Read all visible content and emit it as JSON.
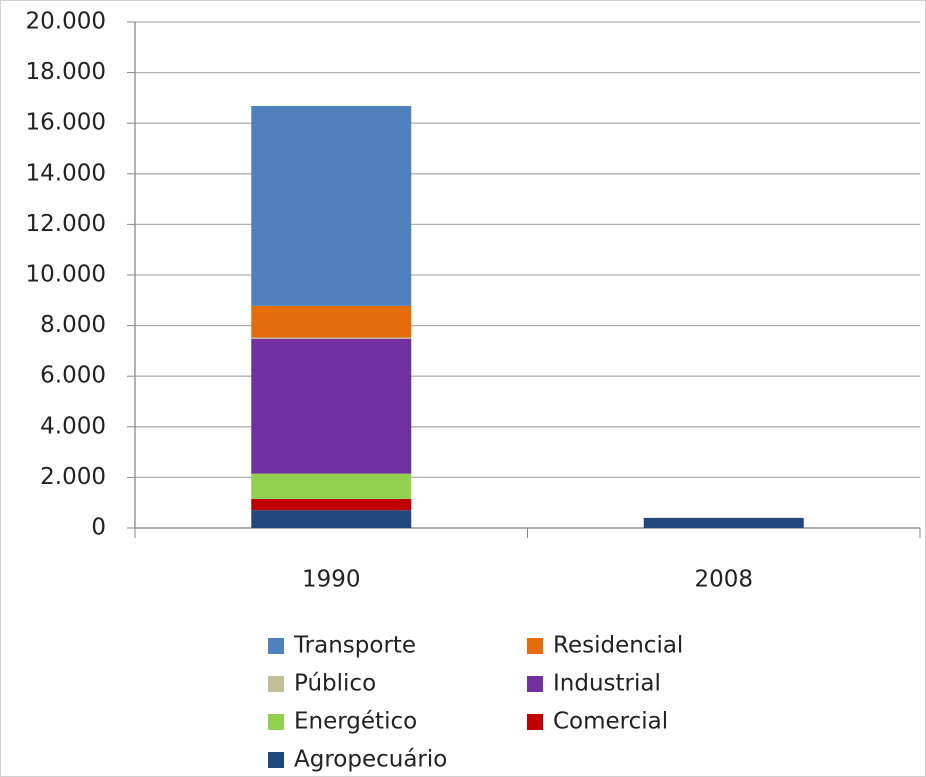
{
  "chart_data": {
    "type": "stacked-bar",
    "categories": [
      "1990",
      "2008"
    ],
    "series": [
      {
        "name": "Agropecuário",
        "color": "#1f497d",
        "values": [
          700,
          400
        ]
      },
      {
        "name": "Comercial",
        "color": "#c00000",
        "values": [
          450,
          0
        ]
      },
      {
        "name": "Energético",
        "color": "#92d050",
        "values": [
          1000,
          0
        ]
      },
      {
        "name": "Industrial",
        "color": "#7030a0",
        "values": [
          5330,
          0
        ]
      },
      {
        "name": "Público",
        "color": "#c4bd97",
        "values": [
          50,
          0
        ]
      },
      {
        "name": "Residencial",
        "color": "#e46c0a",
        "values": [
          1250,
          0
        ]
      },
      {
        "name": "Transporte",
        "color": "#4f81bd",
        "values": [
          7900,
          0
        ]
      }
    ],
    "ylim": [
      0,
      20000
    ],
    "yticks": [
      0,
      {
        "value": 2000,
        "label": "2.000"
      },
      {
        "value": 4000,
        "label": "4.000"
      },
      {
        "value": 6000,
        "label": "6.000"
      },
      {
        "value": 8000,
        "label": "8.000"
      },
      {
        "value": 10000,
        "label": "10.000"
      },
      {
        "value": 12000,
        "label": "12.000"
      },
      {
        "value": 14000,
        "label": "14.000"
      },
      {
        "value": 16000,
        "label": "16.000"
      },
      {
        "value": 18000,
        "label": "18.000"
      },
      {
        "value": 20000,
        "label": "20.000"
      }
    ],
    "grid": true
  }
}
